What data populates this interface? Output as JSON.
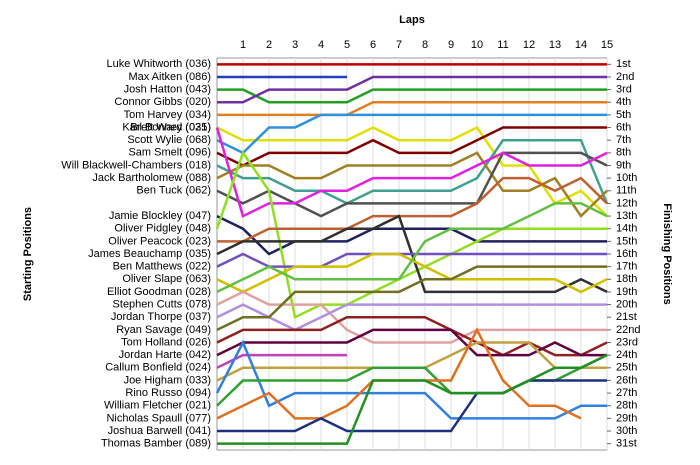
{
  "chart_data": {
    "type": "line",
    "title": "Laps",
    "y_label": "Starting Positions",
    "y2_label": "Finishing Positions",
    "x": [
      0,
      1,
      2,
      3,
      4,
      5,
      6,
      7,
      8,
      9,
      10,
      11,
      12,
      13,
      14,
      15
    ],
    "xlim": [
      0,
      15
    ],
    "xticks": [
      1,
      2,
      3,
      4,
      5,
      6,
      7,
      8,
      9,
      10,
      11,
      12,
      13,
      14,
      15
    ],
    "ylim": [
      0.5,
      31.5
    ],
    "y_reversed": true,
    "grid": true,
    "y2lim": [
      0.5,
      31.5
    ],
    "y2ticks": [
      {
        "value": 1,
        "label": "1st"
      },
      {
        "value": 2,
        "label": "2nd"
      },
      {
        "value": 3,
        "label": "3rd"
      },
      {
        "value": 4,
        "label": "4th"
      },
      {
        "value": 5,
        "label": "5th"
      },
      {
        "value": 6,
        "label": "6th"
      },
      {
        "value": 7,
        "label": "7th"
      },
      {
        "value": 8,
        "label": "8th"
      },
      {
        "value": 9,
        "label": "9th"
      },
      {
        "value": 10,
        "label": "10th"
      },
      {
        "value": 11,
        "label": "11th"
      },
      {
        "value": 12,
        "label": "12th"
      },
      {
        "value": 13,
        "label": "13th"
      },
      {
        "value": 14,
        "label": "14th"
      },
      {
        "value": 15,
        "label": "15th"
      },
      {
        "value": 16,
        "label": "16th"
      },
      {
        "value": 17,
        "label": "17th"
      },
      {
        "value": 18,
        "label": "18th"
      },
      {
        "value": 19,
        "label": "19th"
      },
      {
        "value": 20,
        "label": "20th"
      },
      {
        "value": 21,
        "label": "21st"
      },
      {
        "value": 22,
        "label": "22nd"
      },
      {
        "value": 23,
        "label": "23rd"
      },
      {
        "value": 24,
        "label": "24th"
      },
      {
        "value": 25,
        "label": "25th"
      },
      {
        "value": 26,
        "label": "26th"
      },
      {
        "value": 27,
        "label": "27th"
      },
      {
        "value": 28,
        "label": "28th"
      },
      {
        "value": 29,
        "label": "29th"
      },
      {
        "value": 30,
        "label": "30th"
      },
      {
        "value": 31,
        "label": "31st"
      }
    ],
    "series": [
      {
        "name": "Luke Whitworth (036)",
        "color": "#c00000",
        "values": [
          1,
          1,
          1,
          1,
          1,
          1,
          1,
          1,
          1,
          1,
          1,
          1,
          1,
          1,
          1,
          1
        ]
      },
      {
        "name": "Max Aitken (086)",
        "color": "#2040c0",
        "values": [
          2,
          2,
          2,
          2,
          2,
          2,
          null,
          null,
          null,
          null,
          null,
          null,
          null,
          null,
          null,
          null
        ]
      },
      {
        "name": "Josh Hatton (043)",
        "color": "#20a020",
        "values": [
          3,
          3,
          4,
          4,
          4,
          4,
          3,
          3,
          3,
          3,
          3,
          3,
          3,
          3,
          3,
          3
        ]
      },
      {
        "name": "Connor Gibbs (020)",
        "color": "#7030a0",
        "values": [
          4,
          4,
          3,
          3,
          3,
          3,
          2,
          2,
          2,
          2,
          2,
          2,
          2,
          2,
          2,
          2
        ]
      },
      {
        "name": "Tom Harvey (034)",
        "color": "#e08020",
        "values": [
          5,
          5,
          5,
          5,
          5,
          5,
          4,
          4,
          4,
          4,
          4,
          4,
          4,
          4,
          4,
          4
        ]
      },
      {
        "name": "Brett Ward (031)",
        "color": "#e0e000",
        "values": [
          6,
          7,
          7,
          7,
          7,
          7,
          6,
          7,
          7,
          7,
          6,
          9,
          9,
          12,
          11,
          13
        ]
      },
      {
        "name": "Scott Wylie (068)",
        "color": "#3090e0",
        "values": [
          7,
          8,
          6,
          6,
          5,
          5,
          5,
          5,
          5,
          5,
          5,
          5,
          5,
          5,
          5,
          5
        ]
      },
      {
        "name": "Sam Smelt (096)",
        "color": "#800000",
        "values": [
          8,
          9,
          8,
          8,
          8,
          8,
          7,
          8,
          8,
          8,
          7,
          6,
          6,
          6,
          6,
          6
        ]
      },
      {
        "name": "Will Blackwell-Chambers (018)",
        "color": "#40a090",
        "values": [
          9,
          10,
          10,
          11,
          11,
          12,
          11,
          11,
          11,
          11,
          10,
          7,
          7,
          7,
          7,
          12
        ]
      },
      {
        "name": "Jack Bartholomew (088)",
        "color": "#a08020",
        "values": [
          10,
          9,
          9,
          10,
          10,
          9,
          9,
          9,
          9,
          9,
          8,
          11,
          11,
          10,
          13,
          11
        ]
      },
      {
        "name": "Ben Tuck (062)",
        "color": "#505050",
        "values": [
          11,
          12,
          11,
          12,
          13,
          12,
          12,
          12,
          12,
          12,
          12,
          8,
          8,
          8,
          8,
          9
        ]
      },
      {
        "name": "Karl Bonney (025)",
        "color": "#e020e0",
        "values": [
          6,
          13,
          12,
          12,
          11,
          11,
          10,
          10,
          10,
          10,
          9,
          8,
          9,
          9,
          9,
          8
        ]
      },
      {
        "name": "Jamie Blockley (047)",
        "color": "#202060",
        "values": [
          13,
          14,
          16,
          15,
          15,
          15,
          14,
          14,
          14,
          14,
          15,
          15,
          15,
          15,
          15,
          15
        ]
      },
      {
        "name": "Oliver Pidgley (048)",
        "color": "#90e020",
        "values": [
          14,
          8,
          11,
          21,
          20,
          20,
          19,
          18,
          17,
          16,
          15,
          14,
          14,
          14,
          14,
          14
        ]
      },
      {
        "name": "Oliver Peacock (023)",
        "color": "#c06030",
        "values": [
          15,
          15,
          14,
          14,
          14,
          14,
          13,
          13,
          13,
          13,
          12,
          10,
          10,
          11,
          10,
          12
        ]
      },
      {
        "name": "James Beauchamp (035)",
        "color": "#303030",
        "values": [
          16,
          15,
          15,
          15,
          15,
          14,
          14,
          13,
          19,
          19,
          19,
          19,
          19,
          19,
          18,
          19
        ]
      },
      {
        "name": "Ben Matthews (022)",
        "color": "#7050c0",
        "values": [
          17,
          16,
          17,
          17,
          17,
          16,
          16,
          16,
          16,
          16,
          16,
          16,
          16,
          16,
          16,
          16
        ]
      },
      {
        "name": "Oliver Slape (063)",
        "color": "#d0c000",
        "values": [
          18,
          19,
          18,
          17,
          17,
          17,
          16,
          16,
          17,
          18,
          18,
          18,
          18,
          18,
          19,
          18
        ]
      },
      {
        "name": "Elliot Goodman (028)",
        "color": "#60c040",
        "values": [
          19,
          18,
          17,
          18,
          18,
          18,
          18,
          18,
          15,
          14,
          14,
          14,
          13,
          12,
          12,
          13
        ]
      },
      {
        "name": "Stephen Cutts (078)",
        "color": "#e0a0a0",
        "values": [
          20,
          19,
          20,
          20,
          20,
          22,
          23,
          23,
          23,
          23,
          22,
          22,
          22,
          22,
          22,
          22
        ]
      },
      {
        "name": "Jordan Thorpe (037)",
        "color": "#b090e0",
        "values": [
          21,
          20,
          21,
          22,
          21,
          20,
          20,
          20,
          20,
          20,
          20,
          20,
          20,
          20,
          20,
          20
        ]
      },
      {
        "name": "Ryan Savage (049)",
        "color": "#707020",
        "values": [
          22,
          21,
          21,
          19,
          19,
          19,
          19,
          19,
          18,
          18,
          17,
          17,
          17,
          17,
          17,
          17
        ]
      },
      {
        "name": "Tom Holland (026)",
        "color": "#902020",
        "values": [
          23,
          22,
          22,
          22,
          22,
          21,
          21,
          21,
          21,
          22,
          23,
          24,
          23,
          24,
          24,
          23
        ]
      },
      {
        "name": "Jordan Harte (042)",
        "color": "#600040",
        "values": [
          24,
          23,
          23,
          23,
          23,
          23,
          22,
          22,
          22,
          22,
          24,
          24,
          24,
          23,
          24,
          24
        ]
      },
      {
        "name": "Callum Bonfield (024)",
        "color": "#c040c0",
        "values": [
          25,
          24,
          24,
          24,
          24,
          24,
          null,
          null,
          null,
          null,
          null,
          null,
          null,
          null,
          null,
          null
        ]
      },
      {
        "name": "Joe Higham (033)",
        "color": "#c0a040",
        "values": [
          26,
          25,
          25,
          25,
          25,
          25,
          25,
          25,
          25,
          24,
          23,
          23,
          23,
          25,
          25,
          25
        ]
      },
      {
        "name": "Rino Russo (094)",
        "color": "#3080e0",
        "values": [
          27,
          23,
          28,
          27,
          27,
          27,
          27,
          27,
          27,
          29,
          29,
          29,
          29,
          29,
          28,
          28
        ]
      },
      {
        "name": "William Fletcher (021)",
        "color": "#30a030",
        "values": [
          28,
          26,
          26,
          26,
          26,
          26,
          25,
          25,
          25,
          27,
          27,
          27,
          26,
          26,
          25,
          24
        ]
      },
      {
        "name": "Nicholas Spaull (077)",
        "color": "#e07020",
        "values": [
          29,
          28,
          27,
          29,
          29,
          28,
          26,
          26,
          26,
          26,
          22,
          26,
          28,
          28,
          29,
          null
        ]
      },
      {
        "name": "Joshua Barwell (041)",
        "color": "#203080",
        "values": [
          30,
          30,
          30,
          30,
          29,
          30,
          30,
          30,
          30,
          30,
          27,
          27,
          26,
          26,
          26,
          26
        ]
      },
      {
        "name": "Thomas Bamber (089)",
        "color": "#209020",
        "values": [
          31,
          31,
          31,
          31,
          31,
          31,
          26,
          26,
          26,
          27,
          27,
          27,
          26,
          25,
          25,
          24
        ]
      }
    ]
  }
}
